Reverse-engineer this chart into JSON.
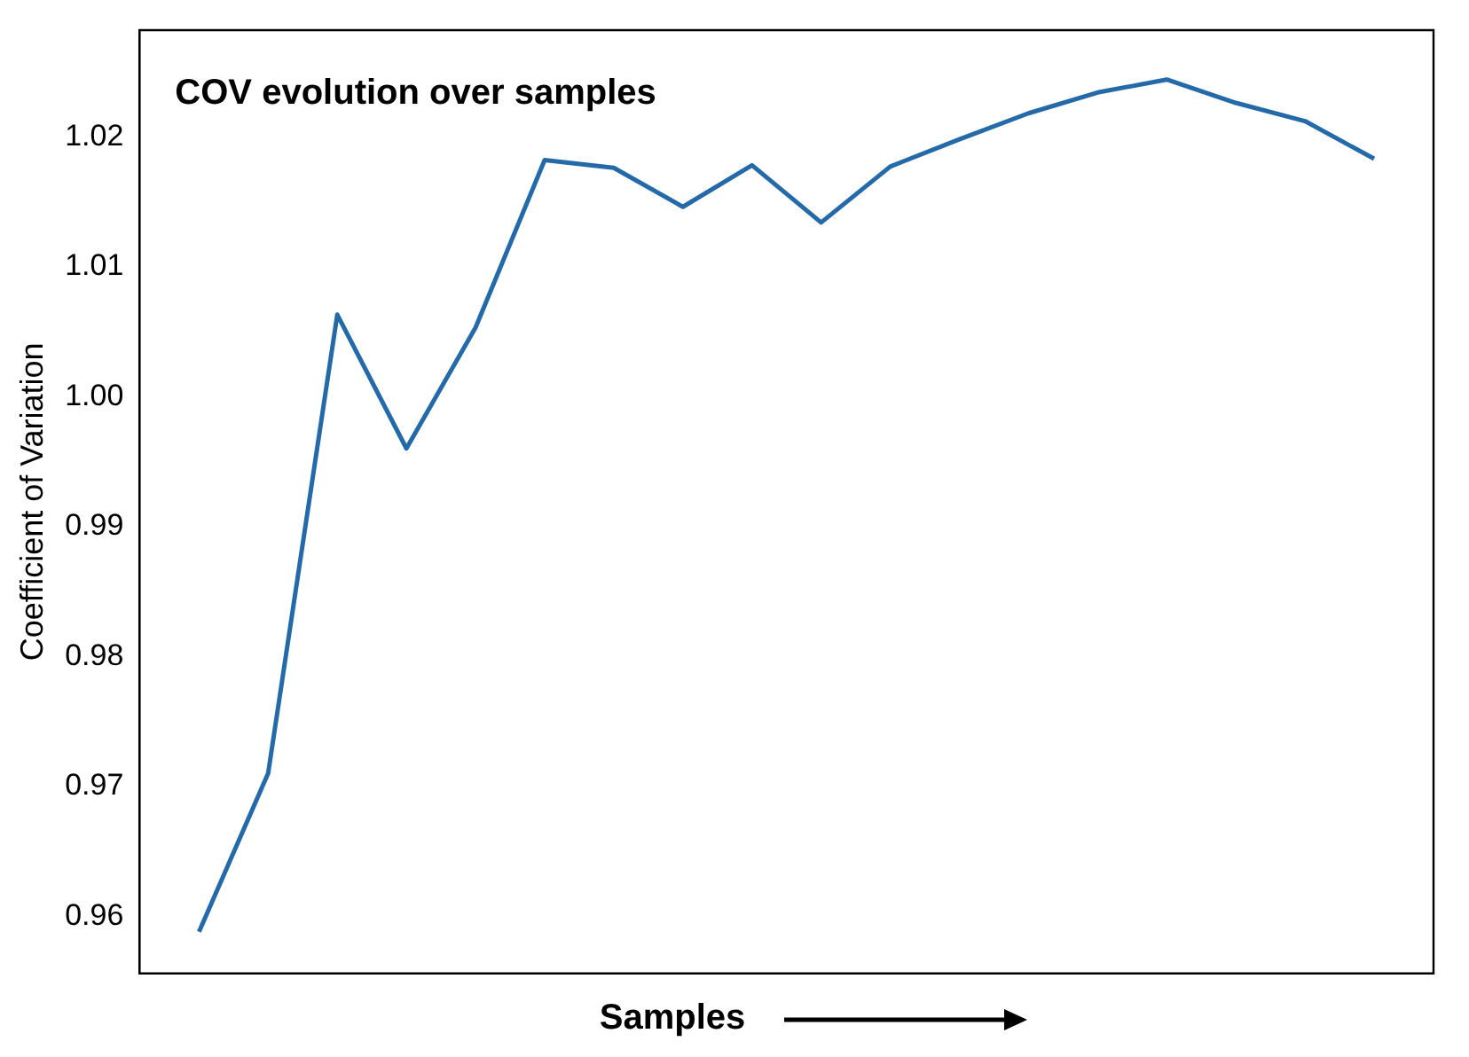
{
  "chart_data": {
    "type": "line",
    "title": "COV evolution over samples",
    "xlabel": "Samples",
    "ylabel": "Coefficient of Variation",
    "categories": [
      null,
      null,
      null,
      null,
      null,
      null,
      null,
      null,
      null,
      null,
      null,
      null,
      null,
      null,
      null,
      null,
      null,
      null
    ],
    "series": [
      {
        "color": "#2469a8",
        "values": [
          0.9588,
          0.971,
          1.0063,
          0.996,
          1.0053,
          1.0182,
          1.0176,
          1.0146,
          1.0178,
          1.0134,
          1.0177,
          1.0198,
          1.0218,
          1.0234,
          1.0244,
          1.0226,
          1.0212,
          1.0183
        ]
      }
    ],
    "ylim": [
      0.9556,
      1.0282
    ],
    "yticks": [
      {
        "value": 0.96,
        "label": "0.96"
      },
      {
        "value": 0.97,
        "label": "0.97"
      },
      {
        "value": 0.98,
        "label": "0.98"
      },
      {
        "value": 0.99,
        "label": "0.99"
      },
      {
        "value": 1.0,
        "label": "1.00"
      },
      {
        "value": 1.01,
        "label": "1.01"
      },
      {
        "value": 1.02,
        "label": "1.02"
      }
    ],
    "grid": false,
    "legend": false,
    "marker": "none",
    "line_style": "solid",
    "tick_labels": "y"
  }
}
